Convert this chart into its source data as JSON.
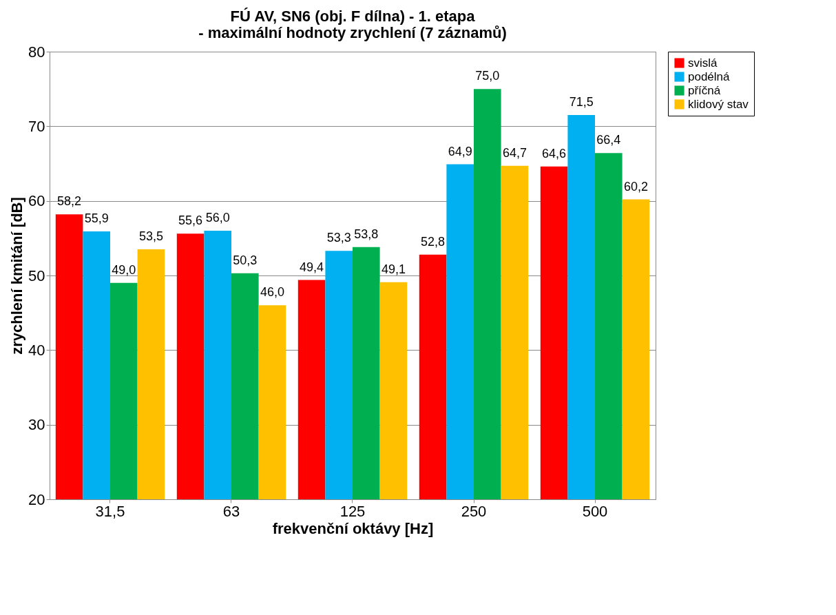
{
  "chart_data": {
    "type": "bar",
    "title": "FÚ AV, SN6 (obj. F dílna) - 1. etapa\n- maximální hodnoty zrychlení (7 záznamů)",
    "xlabel": "frekvenční oktávy [Hz]",
    "ylabel": "zrychlení kmitání [dB]",
    "categories": [
      "31,5",
      "63",
      "125",
      "250",
      "500"
    ],
    "series": [
      {
        "name": "svislá",
        "color": "#ff0000",
        "values": [
          58.2,
          55.6,
          49.4,
          52.8,
          64.6
        ],
        "value_labels": [
          "58,2",
          "55,6",
          "49,4",
          "52,8",
          "64,6"
        ]
      },
      {
        "name": "podélná",
        "color": "#00b0f0",
        "values": [
          55.9,
          56.0,
          53.3,
          64.9,
          71.5
        ],
        "value_labels": [
          "55,9",
          "56,0",
          "53,3",
          "64,9",
          "71,5"
        ]
      },
      {
        "name": "příčná",
        "color": "#00b050",
        "values": [
          49.0,
          50.3,
          53.8,
          75.0,
          66.4
        ],
        "value_labels": [
          "49,0",
          "50,3",
          "53,8",
          "75,0",
          "66,4"
        ]
      },
      {
        "name": "klidový stav",
        "color": "#ffc000",
        "values": [
          53.5,
          46.0,
          49.1,
          64.7,
          60.2
        ],
        "value_labels": [
          "53,5",
          "46,0",
          "49,1",
          "64,7",
          "60,2"
        ]
      }
    ],
    "ylim": [
      20,
      80
    ],
    "yticks": [
      20,
      30,
      40,
      50,
      60,
      70,
      80
    ],
    "grid": "y",
    "legend": "right"
  }
}
